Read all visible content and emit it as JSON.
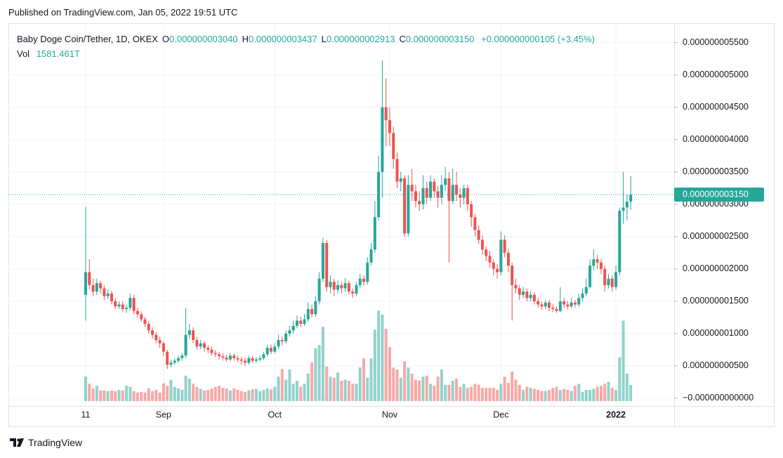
{
  "header": {
    "published": "Published on TradingView.com, Jan 05, 2022 19:51 UTC"
  },
  "legend": {
    "symbol": "Baby Doge Coin/Tether, 1D, OKEX",
    "ohlc": [
      {
        "label": "O",
        "value": "0.000000003040"
      },
      {
        "label": "H",
        "value": "0.000000003437"
      },
      {
        "label": "L",
        "value": "0.000000002913"
      },
      {
        "label": "C",
        "value": "0.000000003150"
      }
    ],
    "change": "+0.000000000105 (+3.45%)",
    "volume_name": "Vol",
    "volume_value": "1581.461T"
  },
  "footer": {
    "brand": "TradingView"
  },
  "chart_data": {
    "type": "candlestick",
    "up_color": "#26a69a",
    "down_color": "#ef5350",
    "grid": true,
    "last_price_label": "0.000000003150",
    "categories": [
      "11",
      null,
      null,
      null,
      null,
      null,
      null,
      null,
      null,
      null,
      null,
      null,
      null,
      null,
      null,
      null,
      null,
      null,
      null,
      null,
      null,
      "Sep",
      null,
      null,
      null,
      null,
      null,
      null,
      null,
      null,
      null,
      null,
      null,
      null,
      null,
      null,
      null,
      null,
      null,
      null,
      null,
      null,
      null,
      null,
      null,
      null,
      null,
      null,
      null,
      null,
      null,
      "Oct",
      null,
      null,
      null,
      null,
      null,
      null,
      null,
      null,
      null,
      null,
      null,
      null,
      null,
      null,
      null,
      null,
      null,
      null,
      null,
      null,
      null,
      null,
      null,
      null,
      null,
      null,
      null,
      null,
      null,
      null,
      "Nov",
      null,
      null,
      null,
      null,
      null,
      null,
      null,
      null,
      null,
      null,
      null,
      null,
      null,
      null,
      null,
      null,
      null,
      null,
      null,
      null,
      null,
      null,
      null,
      null,
      null,
      null,
      null,
      null,
      null,
      "Dec",
      null,
      null,
      null,
      null,
      null,
      null,
      null,
      null,
      null,
      null,
      null,
      null,
      null,
      null,
      null,
      null,
      null,
      null,
      null,
      null,
      null,
      null,
      null,
      null,
      null,
      null,
      null,
      null,
      null,
      null,
      "2022",
      null,
      null,
      null,
      null
    ],
    "open": [
      1.6e-09,
      1.95e-09,
      1.75e-09,
      1.65e-09,
      1.78e-09,
      1.7e-09,
      1.58e-09,
      1.62e-09,
      1.5e-09,
      1.42e-09,
      1.45e-09,
      1.38e-09,
      1.4e-09,
      1.55e-09,
      1.35e-09,
      1.3e-09,
      1.22e-09,
      1.15e-09,
      1.05e-09,
      9.8e-10,
      9e-10,
      8.5e-10,
      7.2e-10,
      5.2e-10,
      5.5e-10,
      5.8e-10,
      6.2e-10,
      6.6e-10,
      9.8e-10,
      1.05e-09,
      9e-10,
      8e-10,
      8.5e-10,
      7.8e-10,
      7.5e-10,
      7e-10,
      6.8e-10,
      6.5e-10,
      6.3e-10,
      6e-10,
      6.6e-10,
      6.2e-10,
      6e-10,
      5.8e-10,
      5.5e-10,
      6.2e-10,
      5.8e-10,
      6e-10,
      6.2e-10,
      6.8e-10,
      7.8e-10,
      7.2e-10,
      8e-10,
      9e-10,
      8.8e-10,
      1e-09,
      1.05e-09,
      1.12e-09,
      1.2e-09,
      1.15e-09,
      1.22e-09,
      1.38e-09,
      1.3e-09,
      1.5e-09,
      1.85e-09,
      2.4e-09,
      1.72e-09,
      1.8e-09,
      1.68e-09,
      1.75e-09,
      1.7e-09,
      1.78e-09,
      1.65e-09,
      1.62e-09,
      1.75e-09,
      1.85e-09,
      1.8e-09,
      2.1e-09,
      2.3e-09,
      2.8e-09,
      3.5e-09,
      4.5e-09,
      4.3e-09,
      4.1e-09,
      3.7e-09,
      3.35e-09,
      3.4e-09,
      2.55e-09,
      3.3e-09,
      3.2e-09,
      3.05e-09,
      3e-09,
      3.25e-09,
      3.1e-09,
      3.35e-09,
      3.2e-09,
      3.1e-09,
      3.3e-09,
      3.4e-09,
      3.05e-09,
      3.3e-09,
      3.15e-09,
      3.1e-09,
      3.25e-09,
      3e-09,
      2.8e-09,
      2.6e-09,
      2.45e-09,
      2.3e-09,
      2.2e-09,
      2.1e-09,
      2e-09,
      1.95e-09,
      2.45e-09,
      2.25e-09,
      2.05e-09,
      1.75e-09,
      1.7e-09,
      1.6e-09,
      1.65e-09,
      1.55e-09,
      1.6e-09,
      1.5e-09,
      1.45e-09,
      1.42e-09,
      1.48e-09,
      1.4e-09,
      1.38e-09,
      1.35e-09,
      1.5e-09,
      1.45e-09,
      1.42e-09,
      1.48e-09,
      1.45e-09,
      1.55e-09,
      1.62e-09,
      1.72e-09,
      2.05e-09,
      2.15e-09,
      2.1e-09,
      2e-09,
      1.75e-09,
      1.85e-09,
      1.72e-09,
      1.95e-09,
      2.9e-09,
      2.95e-09,
      3.04e-09
    ],
    "high": [
      2.96e-09,
      2.15e-09,
      1.85e-09,
      1.85e-09,
      1.82e-09,
      1.75e-09,
      1.68e-09,
      1.66e-09,
      1.55e-09,
      1.5e-09,
      1.5e-09,
      1.45e-09,
      1.62e-09,
      1.6e-09,
      1.4e-09,
      1.34e-09,
      1.26e-09,
      1.2e-09,
      1.1e-09,
      1.02e-09,
      9.5e-10,
      8.8e-10,
      7.5e-10,
      6e-10,
      6.2e-10,
      6.6e-10,
      7e-10,
      1.4e-09,
      1.15e-09,
      1.1e-09,
      9.5e-10,
      9e-10,
      8.8e-10,
      8.2e-10,
      8e-10,
      7.4e-10,
      7.2e-10,
      7e-10,
      6.7e-10,
      7e-10,
      6.9e-10,
      6.6e-10,
      6.4e-10,
      6.2e-10,
      6.6e-10,
      6.5e-10,
      6.4e-10,
      6.6e-10,
      7.2e-10,
      8.2e-10,
      8.3e-10,
      8.5e-10,
      9.8e-10,
      9.6e-10,
      1.05e-09,
      1.12e-09,
      1.2e-09,
      1.28e-09,
      1.26e-09,
      1.3e-09,
      1.48e-09,
      1.45e-09,
      1.58e-09,
      1.95e-09,
      2.48e-09,
      2.45e-09,
      1.9e-09,
      1.85e-09,
      1.82e-09,
      1.8e-09,
      1.86e-09,
      1.82e-09,
      1.7e-09,
      1.8e-09,
      1.92e-09,
      1.9e-09,
      2.18e-09,
      2.4e-09,
      3.05e-09,
      3.75e-09,
      5.22e-09,
      4.95e-09,
      4.5e-09,
      4.2e-09,
      3.8e-09,
      3.5e-09,
      3.45e-09,
      3.45e-09,
      3.55e-09,
      3.3e-09,
      3.2e-09,
      3.45e-09,
      3.35e-09,
      3.45e-09,
      3.4e-09,
      3.28e-09,
      3.45e-09,
      3.58e-09,
      3.5e-09,
      3.55e-09,
      3.5e-09,
      3.25e-09,
      3.3e-09,
      3.3e-09,
      3.05e-09,
      2.85e-09,
      2.68e-09,
      2.52e-09,
      2.35e-09,
      2.28e-09,
      2.15e-09,
      2.08e-09,
      2.58e-09,
      2.52e-09,
      2.3e-09,
      2.1e-09,
      1.85e-09,
      1.75e-09,
      1.72e-09,
      1.7e-09,
      1.66e-09,
      1.64e-09,
      1.55e-09,
      1.5e-09,
      1.52e-09,
      1.52e-09,
      1.45e-09,
      1.42e-09,
      1.72e-09,
      1.55e-09,
      1.5e-09,
      1.55e-09,
      1.52e-09,
      1.62e-09,
      1.7e-09,
      1.85e-09,
      2.15e-09,
      2.3e-09,
      2.22e-09,
      2.15e-09,
      2.05e-09,
      1.92e-09,
      1.9e-09,
      2.05e-09,
      2.95e-09,
      3.5e-09,
      3.15e-09,
      3.437e-09
    ],
    "low": [
      1.2e-09,
      1.68e-09,
      1.58e-09,
      1.6e-09,
      1.62e-09,
      1.52e-09,
      1.53e-09,
      1.45e-09,
      1.38e-09,
      1.38e-09,
      1.33e-09,
      1.32e-09,
      1.36e-09,
      1.3e-09,
      1.25e-09,
      1.18e-09,
      1.1e-09,
      1e-09,
      9.2e-10,
      8.5e-10,
      7.8e-10,
      6.5e-10,
      4.5e-10,
      4.8e-10,
      5.2e-10,
      5.5e-10,
      5.8e-10,
      6.2e-10,
      9.2e-10,
      8.5e-10,
      7.5e-10,
      7.6e-10,
      7.2e-10,
      7e-10,
      6.6e-10,
      6.4e-10,
      6e-10,
      5.8e-10,
      5.6e-10,
      5.7e-10,
      5.8e-10,
      5.6e-10,
      5.2e-10,
      5e-10,
      5.2e-10,
      5.5e-10,
      5.5e-10,
      5.7e-10,
      6e-10,
      6.5e-10,
      6.8e-10,
      7e-10,
      7.6e-10,
      8.2e-10,
      8.4e-10,
      9.5e-10,
      1e-09,
      1.08e-09,
      1.1e-09,
      1.12e-09,
      1.18e-09,
      1.25e-09,
      1.26e-09,
      1.45e-09,
      1.8e-09,
      1.65e-09,
      1.62e-09,
      1.58e-09,
      1.62e-09,
      1.62e-09,
      1.65e-09,
      1.6e-09,
      1.55e-09,
      1.58e-09,
      1.7e-09,
      1.74e-09,
      1.76e-09,
      2.05e-09,
      2.25e-09,
      2.75e-09,
      3.1e-09,
      3.9e-09,
      3.9e-09,
      3.55e-09,
      3.25e-09,
      3.2e-09,
      2.5e-09,
      2.5e-09,
      3.05e-09,
      2.95e-09,
      2.9e-09,
      2.92e-09,
      3e-09,
      3.05e-09,
      3.1e-09,
      2.95e-09,
      3e-09,
      3.2e-09,
      2.1e-09,
      3e-09,
      3.05e-09,
      2.95e-09,
      3e-09,
      2.9e-09,
      2.65e-09,
      2.5e-09,
      2.38e-09,
      2.22e-09,
      2.12e-09,
      2.02e-09,
      1.9e-09,
      1.85e-09,
      1.9e-09,
      2.18e-09,
      1.95e-09,
      1.2e-09,
      1.62e-09,
      1.52e-09,
      1.55e-09,
      1.5e-09,
      1.5e-09,
      1.45e-09,
      1.4e-09,
      1.37e-09,
      1.38e-09,
      1.35e-09,
      1.33e-09,
      1.32e-09,
      1.33e-09,
      1.4e-09,
      1.38e-09,
      1.4e-09,
      1.4e-09,
      1.42e-09,
      1.5e-09,
      1.58e-09,
      1.7e-09,
      1.98e-09,
      2e-09,
      1.92e-09,
      1.65e-09,
      1.7e-09,
      1.65e-09,
      1.68e-09,
      1.9e-09,
      2.7e-09,
      2.75e-09,
      2.913e-09
    ],
    "close": [
      1.95e-09,
      1.75e-09,
      1.65e-09,
      1.78e-09,
      1.7e-09,
      1.58e-09,
      1.62e-09,
      1.5e-09,
      1.42e-09,
      1.45e-09,
      1.38e-09,
      1.4e-09,
      1.55e-09,
      1.35e-09,
      1.3e-09,
      1.22e-09,
      1.15e-09,
      1.05e-09,
      9.8e-10,
      9e-10,
      8.5e-10,
      7.2e-10,
      5.2e-10,
      5.5e-10,
      5.8e-10,
      6.2e-10,
      6.6e-10,
      9.8e-10,
      1.05e-09,
      9e-10,
      8e-10,
      8.5e-10,
      7.8e-10,
      7.5e-10,
      7e-10,
      6.8e-10,
      6.5e-10,
      6.3e-10,
      6e-10,
      6.6e-10,
      6.2e-10,
      6e-10,
      5.8e-10,
      5.5e-10,
      6.2e-10,
      5.8e-10,
      6e-10,
      6.2e-10,
      6.8e-10,
      7.8e-10,
      7.2e-10,
      8e-10,
      9e-10,
      8.8e-10,
      1e-09,
      1.05e-09,
      1.12e-09,
      1.2e-09,
      1.15e-09,
      1.22e-09,
      1.38e-09,
      1.3e-09,
      1.5e-09,
      1.85e-09,
      2.4e-09,
      1.72e-09,
      1.8e-09,
      1.68e-09,
      1.75e-09,
      1.7e-09,
      1.78e-09,
      1.65e-09,
      1.62e-09,
      1.75e-09,
      1.85e-09,
      1.8e-09,
      2.1e-09,
      2.3e-09,
      2.8e-09,
      3.5e-09,
      4.5e-09,
      4.3e-09,
      4.1e-09,
      3.7e-09,
      3.35e-09,
      3.4e-09,
      2.55e-09,
      3.3e-09,
      3.2e-09,
      3.05e-09,
      3e-09,
      3.25e-09,
      3.1e-09,
      3.35e-09,
      3.2e-09,
      3.1e-09,
      3.3e-09,
      3.4e-09,
      3.05e-09,
      3.3e-09,
      3.15e-09,
      3.1e-09,
      3.25e-09,
      3e-09,
      2.8e-09,
      2.6e-09,
      2.45e-09,
      2.3e-09,
      2.2e-09,
      2.1e-09,
      2e-09,
      1.95e-09,
      2.45e-09,
      2.25e-09,
      2.05e-09,
      1.75e-09,
      1.7e-09,
      1.6e-09,
      1.65e-09,
      1.55e-09,
      1.6e-09,
      1.5e-09,
      1.45e-09,
      1.42e-09,
      1.48e-09,
      1.4e-09,
      1.38e-09,
      1.35e-09,
      1.5e-09,
      1.45e-09,
      1.42e-09,
      1.48e-09,
      1.45e-09,
      1.55e-09,
      1.62e-09,
      1.72e-09,
      2.05e-09,
      2.15e-09,
      2.1e-09,
      2e-09,
      1.75e-09,
      1.85e-09,
      1.72e-09,
      1.95e-09,
      2.9e-09,
      2.95e-09,
      3.04e-09,
      3.15e-09
    ],
    "volume": [
      2400,
      1700,
      1250,
      1500,
      1050,
      1050,
      980,
      1050,
      980,
      1100,
      1050,
      1500,
      1400,
      980,
      840,
      900,
      840,
      1250,
      980,
      1100,
      840,
      1750,
      1500,
      2100,
      1400,
      1250,
      1100,
      2500,
      2200,
      1700,
      1400,
      1200,
      1050,
      1100,
      1250,
      1400,
      1500,
      1300,
      1250,
      1050,
      1250,
      1100,
      980,
      900,
      1050,
      1150,
      1200,
      980,
      1100,
      1250,
      1150,
      1400,
      2400,
      3150,
      2100,
      3100,
      1700,
      2000,
      1400,
      1700,
      2700,
      3800,
      5200,
      5500,
      7300,
      3400,
      2400,
      2300,
      2800,
      2000,
      2100,
      2000,
      1700,
      1700,
      3300,
      4200,
      2300,
      4200,
      7000,
      8900,
      8500,
      7100,
      5300,
      3300,
      3100,
      2300,
      3900,
      3300,
      2700,
      2100,
      2000,
      2400,
      2500,
      1700,
      1500,
      2400,
      3100,
      1600,
      1600,
      2000,
      2200,
      1400,
      1700,
      1300,
      1400,
      1700,
      1600,
      1300,
      1300,
      1300,
      1300,
      1100,
      1700,
      2400,
      1800,
      2900,
      2100,
      1600,
      1100,
      1400,
      1300,
      1200,
      1100,
      1000,
      1000,
      1100,
      1300,
      1400,
      1100,
      1200,
      1100,
      1000,
      1500,
      1700,
      900,
      1100,
      1100,
      1200,
      1400,
      1500,
      1700,
      1900,
      1300,
      1100,
      4300,
      7900,
      2700,
      1581.461
    ],
    "ylim": [
      -1.2e-10,
      5.8e-09
    ],
    "yticks": [
      {
        "value": 0,
        "label": "−0.000000000000"
      },
      {
        "value": 5e-10,
        "label": "0.000000000500"
      },
      {
        "value": 1e-09,
        "label": "0.000000001000"
      },
      {
        "value": 1.5e-09,
        "label": "0.000000001500"
      },
      {
        "value": 2e-09,
        "label": "0.000000002000"
      },
      {
        "value": 2.5e-09,
        "label": "0.000000002500"
      },
      {
        "value": 3e-09,
        "label": "0.000000003000"
      },
      {
        "value": 3.5e-09,
        "label": "0.000000003500"
      },
      {
        "value": 4e-09,
        "label": "0.000000004000"
      },
      {
        "value": 4.5e-09,
        "label": "0.000000004500"
      },
      {
        "value": 5e-09,
        "label": "0.000000005000"
      },
      {
        "value": 5.5e-09,
        "label": "0.000000005500"
      }
    ]
  }
}
